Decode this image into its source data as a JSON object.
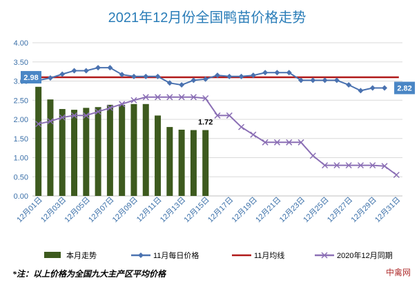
{
  "chart_data": {
    "type": "bar+line",
    "title": "2021年12月份全国鸭苗价格走势",
    "categories": [
      "12月01日",
      "12月02日",
      "12月03日",
      "12月04日",
      "12月05日",
      "12月06日",
      "12月07日",
      "12月08日",
      "12月09日",
      "12月10日",
      "12月11日",
      "12月12日",
      "12月13日",
      "12月14日",
      "12月15日",
      "12月16日",
      "12月17日",
      "12月18日",
      "12月19日",
      "12月20日",
      "12月21日",
      "12月22日",
      "12月23日",
      "12月24日",
      "12月25日",
      "12月26日",
      "12月27日",
      "12月28日",
      "12月29日",
      "12月30日",
      "12月31日"
    ],
    "x_tick_labels": [
      "12月01日",
      "12月03日",
      "12月05日",
      "12月07日",
      "12月09日",
      "12月11日",
      "12月13日",
      "12月15日",
      "12月17日",
      "12月19日",
      "12月21日",
      "12月23日",
      "12月25日",
      "12月27日",
      "12月29日",
      "12月31日"
    ],
    "ylim": [
      0,
      4
    ],
    "y_ticks": [
      "0.00",
      "0.50",
      "1.00",
      "1.50",
      "2.00",
      "2.50",
      "3.00",
      "3.50",
      "4.00"
    ],
    "grid": true,
    "legend_position": "bottom",
    "series": [
      {
        "name": "本月走势",
        "kind": "bar",
        "color": "#3d5a1e",
        "values": [
          2.85,
          2.52,
          2.27,
          2.25,
          2.3,
          2.32,
          2.38,
          2.38,
          2.4,
          2.4,
          2.1,
          1.8,
          1.73,
          1.72,
          1.72,
          null,
          null,
          null,
          null,
          null,
          null,
          null,
          null,
          null,
          null,
          null,
          null,
          null,
          null,
          null,
          null
        ]
      },
      {
        "name": "11月每日价格",
        "kind": "line",
        "marker": "diamond",
        "color": "#4a72b0",
        "values": [
          3.02,
          3.08,
          3.18,
          3.27,
          3.27,
          3.35,
          3.35,
          3.17,
          3.12,
          3.12,
          3.12,
          2.95,
          2.9,
          3.02,
          3.05,
          3.15,
          3.12,
          3.12,
          3.15,
          3.22,
          3.22,
          3.22,
          3.02,
          3.02,
          3.02,
          3.02,
          2.9,
          2.75,
          2.82,
          2.82,
          null
        ]
      },
      {
        "name": "11月均线",
        "kind": "line",
        "color": "#b01818",
        "values": [
          3.1,
          3.1,
          3.1,
          3.1,
          3.1,
          3.1,
          3.1,
          3.1,
          3.1,
          3.1,
          3.1,
          3.1,
          3.1,
          3.1,
          3.1,
          3.1,
          3.1,
          3.1,
          3.1,
          3.1,
          3.1,
          3.1,
          3.1,
          3.1,
          3.1,
          3.1,
          3.1,
          3.1,
          3.1,
          3.1,
          3.1
        ]
      },
      {
        "name": "2020年12月同期",
        "kind": "line",
        "marker": "x",
        "color": "#8b6fb5",
        "values": [
          1.88,
          1.95,
          2.05,
          2.1,
          2.1,
          2.2,
          2.3,
          2.4,
          2.5,
          2.58,
          2.58,
          2.58,
          2.58,
          2.58,
          2.55,
          2.1,
          2.1,
          1.8,
          1.6,
          1.4,
          1.4,
          1.4,
          1.4,
          1.05,
          0.8,
          0.8,
          0.8,
          0.8,
          0.8,
          0.78,
          0.55
        ]
      }
    ],
    "data_labels": [
      {
        "text": "2.98",
        "style": "box"
      },
      {
        "text": "1.72",
        "style": "plain"
      },
      {
        "text": "2.82",
        "style": "box"
      }
    ]
  },
  "note": "*注：以上价格为全国九大主产区平均价格",
  "source": "中禽网",
  "colors": {
    "title": "#2a7db8",
    "grid": "#d9d9d9",
    "axis_text": "#3a6fa8",
    "label_box": "#4a86c5"
  }
}
